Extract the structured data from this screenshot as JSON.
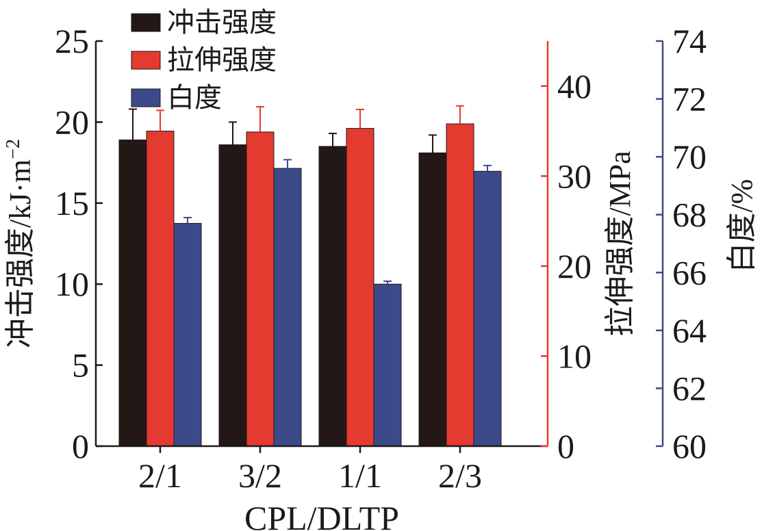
{
  "chart_data": {
    "type": "bar",
    "xlabel": "CPL/DLTP",
    "categories": [
      "2/1",
      "3/2",
      "1/1",
      "2/3"
    ],
    "axes": {
      "left": {
        "label": "冲击强度/kJ·m",
        "label_sup": "−2",
        "ylim": [
          0,
          25
        ],
        "ticks": [
          0,
          5,
          10,
          15,
          20,
          25
        ],
        "color": "#231815"
      },
      "right1": {
        "label": "拉伸强度/MPa",
        "ylim": [
          0,
          45
        ],
        "ticks": [
          0,
          10,
          20,
          30,
          40
        ],
        "color": "#e43a2f"
      },
      "right2": {
        "label": "白度/%",
        "ylim": [
          60,
          74
        ],
        "ticks": [
          60,
          62,
          64,
          66,
          68,
          70,
          72,
          74
        ],
        "color": "#3d4a8a"
      }
    },
    "series": [
      {
        "name": "冲击强度",
        "axis": "left",
        "color": "#231815",
        "values": [
          18.9,
          18.6,
          18.5,
          18.1
        ],
        "errors": [
          1.9,
          1.4,
          0.8,
          1.1
        ]
      },
      {
        "name": "拉伸强度",
        "axis": "right1",
        "color": "#e43a2f",
        "values": [
          35.0,
          34.9,
          35.3,
          35.8
        ],
        "errors": [
          2.3,
          2.8,
          2.1,
          2.0
        ]
      },
      {
        "name": "白度",
        "axis": "right2",
        "color": "#3d4a8a",
        "values": [
          67.7,
          69.6,
          65.6,
          69.5
        ],
        "errors": [
          0.2,
          0.3,
          0.1,
          0.2
        ]
      }
    ],
    "legend": {
      "position": "top-left"
    },
    "grid": false
  }
}
